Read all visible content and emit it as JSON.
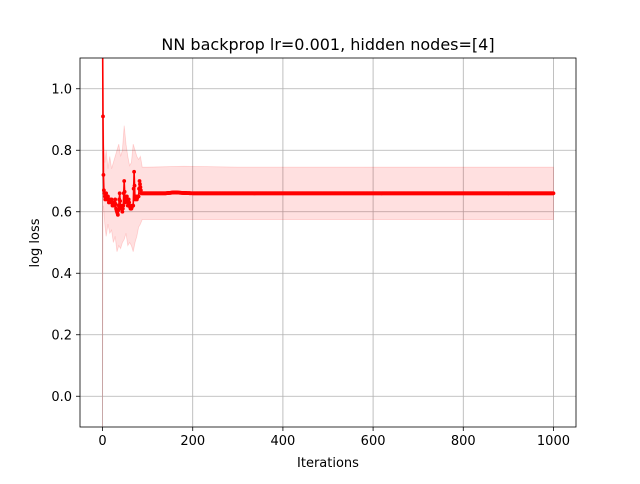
{
  "chart_data": {
    "type": "line",
    "title": "NN backprop lr=0.001, hidden nodes=[4]",
    "xlabel": "Iterations",
    "ylabel": "log loss",
    "xlim": [
      -50,
      1050
    ],
    "ylim": [
      -0.1,
      1.1
    ],
    "xticks": [
      0,
      200,
      400,
      600,
      800,
      1000
    ],
    "yticks": [
      0.0,
      0.2,
      0.4,
      0.6,
      0.8,
      1.0
    ],
    "xtick_labels": [
      "0",
      "200",
      "400",
      "600",
      "800",
      "1000"
    ],
    "ytick_labels": [
      "0.0",
      "0.2",
      "0.4",
      "0.6",
      "0.8",
      "1.0"
    ],
    "grid": true,
    "series": [
      {
        "color": "#ff0000",
        "band_color": "#ff0000",
        "points": [
          [
            0,
            1.2
          ],
          [
            1,
            0.91
          ],
          [
            2,
            0.72
          ],
          [
            3,
            0.67
          ],
          [
            4,
            0.66
          ],
          [
            5,
            0.65
          ],
          [
            6,
            0.64
          ],
          [
            8,
            0.66
          ],
          [
            10,
            0.64
          ],
          [
            12,
            0.65
          ],
          [
            14,
            0.63
          ],
          [
            16,
            0.64
          ],
          [
            18,
            0.63
          ],
          [
            20,
            0.64
          ],
          [
            22,
            0.62
          ],
          [
            24,
            0.63
          ],
          [
            26,
            0.62
          ],
          [
            28,
            0.64
          ],
          [
            30,
            0.61
          ],
          [
            32,
            0.6
          ],
          [
            34,
            0.59
          ],
          [
            36,
            0.62
          ],
          [
            38,
            0.66
          ],
          [
            40,
            0.61
          ],
          [
            42,
            0.62
          ],
          [
            44,
            0.6
          ],
          [
            46,
            0.62
          ],
          [
            48,
            0.7
          ],
          [
            50,
            0.63
          ],
          [
            52,
            0.64
          ],
          [
            54,
            0.65
          ],
          [
            56,
            0.62
          ],
          [
            58,
            0.64
          ],
          [
            60,
            0.62
          ],
          [
            62,
            0.61
          ],
          [
            64,
            0.61
          ],
          [
            66,
            0.62
          ],
          [
            68,
            0.62
          ],
          [
            70,
            0.73
          ],
          [
            72,
            0.64
          ],
          [
            74,
            0.65
          ],
          [
            76,
            0.64
          ],
          [
            78,
            0.65
          ],
          [
            80,
            0.65
          ],
          [
            82,
            0.7
          ],
          [
            84,
            0.68
          ],
          [
            86,
            0.66
          ],
          [
            88,
            0.66
          ],
          [
            90,
            0.66
          ],
          [
            100,
            0.66
          ],
          [
            120,
            0.66
          ],
          [
            140,
            0.66
          ],
          [
            160,
            0.663
          ],
          [
            170,
            0.662
          ],
          [
            180,
            0.661
          ],
          [
            200,
            0.66
          ],
          [
            300,
            0.66
          ],
          [
            400,
            0.66
          ],
          [
            500,
            0.66
          ],
          [
            600,
            0.66
          ],
          [
            700,
            0.66
          ],
          [
            800,
            0.66
          ],
          [
            900,
            0.66
          ],
          [
            1000,
            0.66
          ]
        ],
        "band": [
          [
            0,
            -0.1,
            1.1
          ],
          [
            1,
            0.6,
            1.1
          ],
          [
            2,
            0.62,
            0.9
          ],
          [
            3,
            0.6,
            0.82
          ],
          [
            5,
            0.56,
            0.76
          ],
          [
            8,
            0.52,
            0.8
          ],
          [
            12,
            0.56,
            0.74
          ],
          [
            16,
            0.53,
            0.78
          ],
          [
            20,
            0.54,
            0.74
          ],
          [
            24,
            0.5,
            0.76
          ],
          [
            28,
            0.52,
            0.78
          ],
          [
            32,
            0.47,
            0.8
          ],
          [
            36,
            0.49,
            0.82
          ],
          [
            40,
            0.48,
            0.78
          ],
          [
            44,
            0.5,
            0.8
          ],
          [
            48,
            0.51,
            0.88
          ],
          [
            52,
            0.53,
            0.82
          ],
          [
            56,
            0.49,
            0.78
          ],
          [
            60,
            0.5,
            0.75
          ],
          [
            64,
            0.49,
            0.76
          ],
          [
            68,
            0.47,
            0.82
          ],
          [
            72,
            0.5,
            0.8
          ],
          [
            76,
            0.52,
            0.78
          ],
          [
            80,
            0.55,
            0.77
          ],
          [
            84,
            0.56,
            0.78
          ],
          [
            88,
            0.575,
            0.745
          ],
          [
            100,
            0.575,
            0.745
          ],
          [
            180,
            0.575,
            0.748
          ],
          [
            300,
            0.575,
            0.745
          ],
          [
            600,
            0.575,
            0.745
          ],
          [
            1000,
            0.575,
            0.745
          ]
        ]
      }
    ]
  }
}
